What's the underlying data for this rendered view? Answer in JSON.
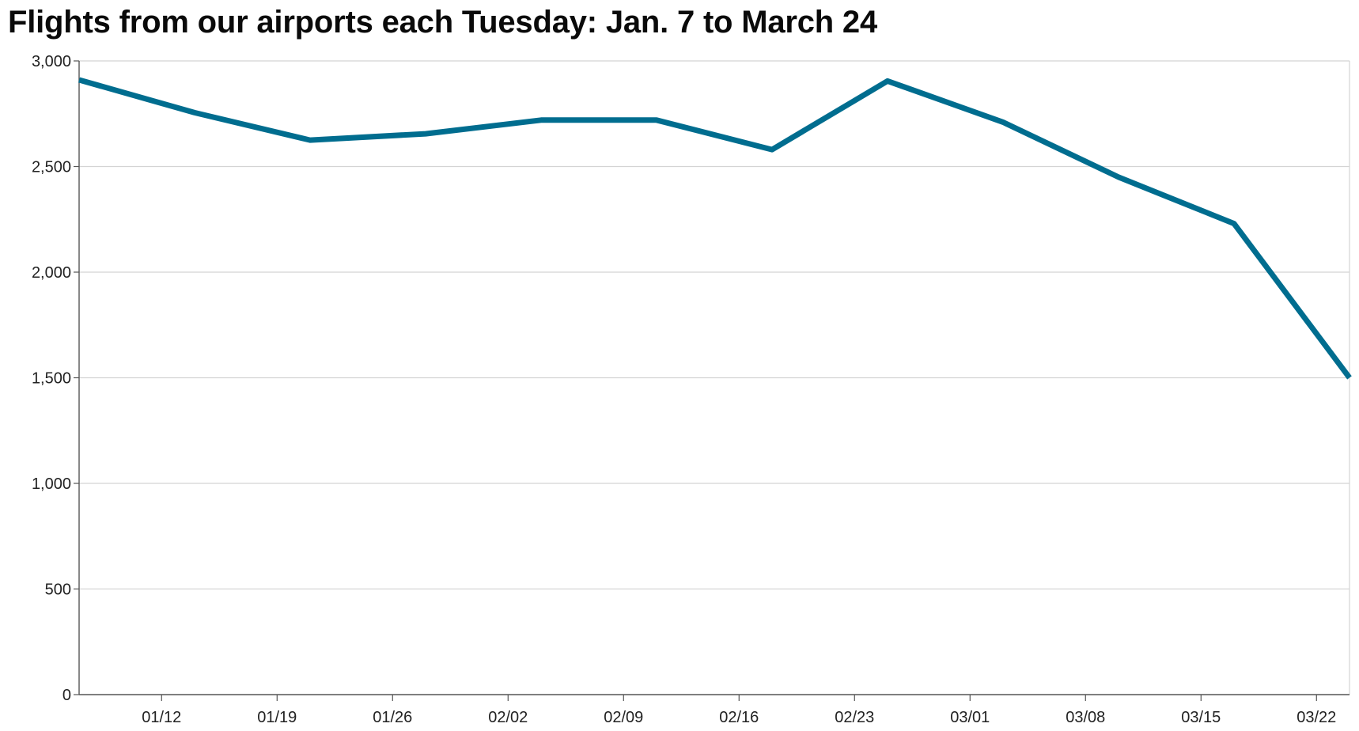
{
  "title": "Flights from our airports each Tuesday: Jan. 7 to March 24",
  "colors": {
    "line": "#006d8f",
    "grid": "#d4d4d4",
    "axis": "#555555"
  },
  "chart_data": {
    "type": "line",
    "title": "Flights from our airports each Tuesday: Jan. 7 to March 24",
    "xlabel": "",
    "ylabel": "",
    "x": [
      "01/07",
      "01/14",
      "01/21",
      "01/28",
      "02/04",
      "02/11",
      "02/18",
      "02/25",
      "03/03",
      "03/10",
      "03/17",
      "03/24"
    ],
    "series": [
      {
        "values": [
          2910,
          2755,
          2625,
          2655,
          2720,
          2720,
          2580,
          2905,
          2710,
          2450,
          2230,
          1500
        ]
      }
    ],
    "x_ticks": [
      "01/12",
      "01/19",
      "01/26",
      "02/02",
      "02/09",
      "02/16",
      "02/23",
      "03/01",
      "03/08",
      "03/15",
      "03/22"
    ],
    "y_ticks": [
      "0",
      "500",
      "1,000",
      "1,500",
      "2,000",
      "2,500",
      "3,000"
    ],
    "y_tick_values": [
      0,
      500,
      1000,
      1500,
      2000,
      2500,
      3000
    ],
    "ylim": [
      0,
      3000
    ],
    "xlim": [
      "01/07",
      "03/24"
    ],
    "grid": true,
    "legend": "none"
  }
}
